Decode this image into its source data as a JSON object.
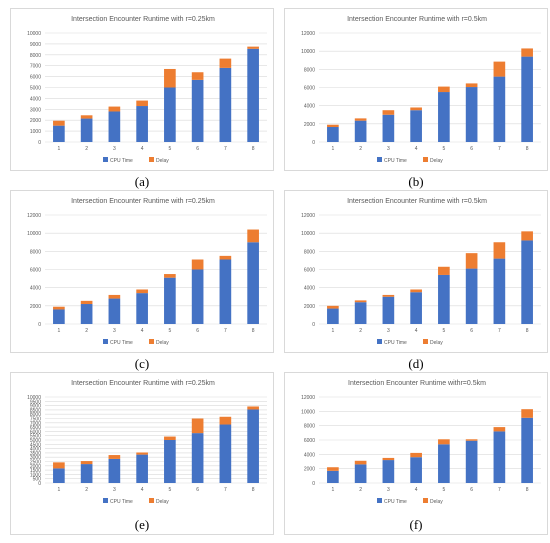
{
  "colors": {
    "cpu": "#4472c4",
    "delay": "#ed7d31",
    "grid": "#d9d9d9",
    "text": "#595959"
  },
  "chart_data": [
    {
      "type": "bar",
      "stacked": true,
      "label": "(a)",
      "title": "Intersection Encounter Runtime with r=0.25km",
      "categories": [
        "1",
        "2",
        "3",
        "4",
        "5",
        "6",
        "7",
        "8"
      ],
      "ylim": [
        0,
        10000
      ],
      "yticks": [
        0,
        1000,
        2000,
        3000,
        4000,
        5000,
        6000,
        7000,
        8000,
        9000,
        10000
      ],
      "series": [
        {
          "name": "CPU Time",
          "values": [
            1500,
            2150,
            2800,
            3300,
            5000,
            5700,
            6800,
            8550
          ]
        },
        {
          "name": "Delay",
          "values": [
            450,
            300,
            450,
            500,
            1700,
            700,
            850,
            200
          ]
        }
      ],
      "legend": "bottom",
      "grid": true
    },
    {
      "type": "bar",
      "stacked": true,
      "label": "(b)",
      "title": "Intersection Encounter Runtime with r=0.5km",
      "categories": [
        "1",
        "2",
        "3",
        "4",
        "5",
        "6",
        "7",
        "8"
      ],
      "ylim": [
        0,
        12000
      ],
      "yticks": [
        0,
        2000,
        4000,
        6000,
        8000,
        10000,
        12000
      ],
      "series": [
        {
          "name": "CPU Time",
          "values": [
            1650,
            2350,
            3000,
            3500,
            5500,
            6050,
            7200,
            9400
          ]
        },
        {
          "name": "Delay",
          "values": [
            250,
            250,
            500,
            300,
            600,
            400,
            1650,
            900
          ]
        }
      ],
      "legend": "bottom",
      "grid": true
    },
    {
      "type": "bar",
      "stacked": true,
      "label": "(c)",
      "title": "Intersection Encounter Runtime with r=0.25km",
      "categories": [
        "1",
        "2",
        "3",
        "4",
        "5",
        "6",
        "7",
        "8"
      ],
      "ylim": [
        0,
        12000
      ],
      "yticks": [
        0,
        2000,
        4000,
        6000,
        8000,
        10000,
        12000
      ],
      "series": [
        {
          "name": "CPU Time",
          "values": [
            1600,
            2200,
            2800,
            3400,
            5100,
            6000,
            7100,
            9000
          ]
        },
        {
          "name": "Delay",
          "values": [
            300,
            350,
            400,
            400,
            400,
            1100,
            400,
            1400
          ]
        }
      ],
      "legend": "bottom",
      "grid": true
    },
    {
      "type": "bar",
      "stacked": true,
      "label": "(d)",
      "title": "Intersection Encounter Runtime with r=0.5km",
      "categories": [
        "1",
        "2",
        "3",
        "4",
        "5",
        "6",
        "7",
        "8"
      ],
      "ylim": [
        0,
        12000
      ],
      "yticks": [
        0,
        2000,
        4000,
        6000,
        8000,
        10000,
        12000
      ],
      "series": [
        {
          "name": "CPU Time",
          "values": [
            1700,
            2400,
            3000,
            3500,
            5400,
            6100,
            7200,
            9200
          ]
        },
        {
          "name": "Delay",
          "values": [
            300,
            200,
            200,
            300,
            900,
            1700,
            1800,
            1000
          ]
        }
      ],
      "legend": "bottom",
      "grid": true
    },
    {
      "type": "bar",
      "stacked": true,
      "label": "(e)",
      "title": "Intersection Encounter Runtime with r=0.25km",
      "categories": [
        "1",
        "2",
        "3",
        "4",
        "5",
        "6",
        "7",
        "8"
      ],
      "ylim": [
        0,
        10000
      ],
      "yticks": [
        0,
        500,
        1000,
        1500,
        2000,
        2500,
        3000,
        3500,
        4000,
        4500,
        5000,
        5500,
        6000,
        6500,
        7000,
        7500,
        8000,
        8500,
        9000,
        9500,
        10000
      ],
      "series": [
        {
          "name": "CPU Time",
          "values": [
            1700,
            2200,
            2800,
            3300,
            5000,
            5800,
            6800,
            8550
          ]
        },
        {
          "name": "Delay",
          "values": [
            700,
            350,
            450,
            250,
            400,
            1700,
            900,
            350
          ]
        }
      ],
      "legend": "bottom",
      "grid": true
    },
    {
      "type": "bar",
      "stacked": true,
      "label": "(f)",
      "title": "Intersection Encounter Runtime  withr=0.5km",
      "categories": [
        "1",
        "2",
        "3",
        "4",
        "5",
        "6",
        "7",
        "8"
      ],
      "ylim": [
        0,
        12000
      ],
      "yticks": [
        0,
        2000,
        4000,
        6000,
        8000,
        10000,
        12000
      ],
      "series": [
        {
          "name": "CPU Time",
          "values": [
            1700,
            2600,
            3200,
            3600,
            5400,
            5900,
            7200,
            9100
          ]
        },
        {
          "name": "Delay",
          "values": [
            500,
            500,
            300,
            600,
            700,
            200,
            600,
            1200
          ]
        }
      ],
      "legend": "bottom",
      "grid": true
    }
  ]
}
